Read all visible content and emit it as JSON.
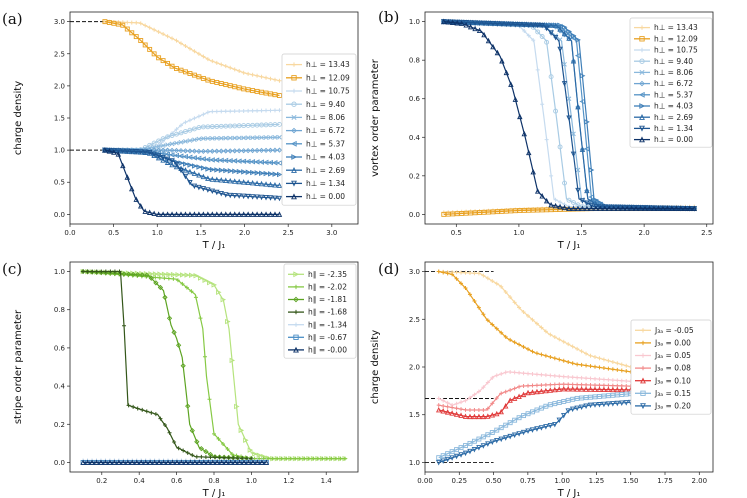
{
  "chart_data": [
    {
      "type": "line",
      "panel_label": "(a)",
      "xlabel": "T / J₁",
      "ylabel": "charge density",
      "xlim": [
        0.0,
        3.3
      ],
      "ylim": [
        -0.15,
        3.15
      ],
      "xticks": [
        "0.0",
        "0.5",
        "1.0",
        "1.5",
        "2.0",
        "2.5",
        "3.0"
      ],
      "yticks": [
        "0.0",
        "0.5",
        "1.0",
        "1.5",
        "2.0",
        "2.5",
        "3.0"
      ],
      "xtick_values": [
        0,
        0.5,
        1,
        1.5,
        2,
        2.5,
        3
      ],
      "ytick_values": [
        0,
        0.5,
        1,
        1.5,
        2,
        2.5,
        3
      ],
      "reference_lines": [
        {
          "y": 3.0,
          "x_from": 0.0,
          "x_to": 0.4
        },
        {
          "y": 1.0,
          "x_from": 0.0,
          "x_to": 0.4
        }
      ],
      "legend_position": "right",
      "series": [
        {
          "name": "h⊥ = 13.43",
          "color": "#f8d8a0",
          "marker": "+",
          "x": [
            0.4,
            0.8,
            1.2,
            1.6,
            2.0,
            2.4
          ],
          "values": [
            3.0,
            2.98,
            2.72,
            2.4,
            2.2,
            2.08
          ]
        },
        {
          "name": "h⊥ = 12.09",
          "color": "#e8a020",
          "marker": "s",
          "x": [
            0.4,
            0.6,
            0.8,
            1.0,
            1.2,
            1.6,
            2.0,
            2.4
          ],
          "values": [
            3.0,
            2.95,
            2.72,
            2.45,
            2.28,
            2.08,
            1.95,
            1.85
          ]
        },
        {
          "name": "h⊥ = 10.75",
          "color": "#c6dbef",
          "marker": "+",
          "x": [
            0.4,
            0.8,
            1.0,
            1.3,
            1.6,
            2.4
          ],
          "values": [
            1.0,
            1.0,
            1.06,
            1.42,
            1.6,
            1.62
          ]
        },
        {
          "name": "h⊥ = 9.40",
          "color": "#a8cbe4",
          "marker": "o",
          "x": [
            0.4,
            0.8,
            1.1,
            1.5,
            2.4
          ],
          "values": [
            1.0,
            1.0,
            1.2,
            1.36,
            1.4
          ]
        },
        {
          "name": "h⊥ = 8.06",
          "color": "#8ab8dc",
          "marker": "x",
          "x": [
            0.4,
            0.8,
            1.1,
            1.5,
            2.4
          ],
          "values": [
            1.0,
            1.0,
            1.08,
            1.18,
            1.2
          ]
        },
        {
          "name": "h⊥ = 6.72",
          "color": "#6fa5d2",
          "marker": "D",
          "x": [
            0.4,
            0.8,
            1.1,
            1.5,
            2.4
          ],
          "values": [
            1.0,
            1.0,
            1.0,
            0.98,
            1.0
          ]
        },
        {
          "name": "h⊥ = 5.37",
          "color": "#5593c6",
          "marker": "<",
          "x": [
            0.4,
            0.9,
            1.2,
            1.6,
            2.4
          ],
          "values": [
            1.0,
            0.98,
            0.92,
            0.85,
            0.8
          ]
        },
        {
          "name": "h⊥ = 4.03",
          "color": "#3f7fb8",
          "marker": ">",
          "x": [
            0.4,
            0.9,
            1.2,
            1.6,
            2.4
          ],
          "values": [
            1.0,
            0.97,
            0.82,
            0.7,
            0.62
          ]
        },
        {
          "name": "h⊥ = 2.69",
          "color": "#2b6aa6",
          "marker": "^",
          "x": [
            0.4,
            0.9,
            1.2,
            1.6,
            2.4
          ],
          "values": [
            1.0,
            0.96,
            0.75,
            0.55,
            0.45
          ]
        },
        {
          "name": "h⊥ = 1.34",
          "color": "#1d5490",
          "marker": "v",
          "x": [
            0.4,
            0.9,
            1.2,
            1.4,
            1.8,
            2.4
          ],
          "values": [
            1.0,
            0.97,
            0.82,
            0.45,
            0.3,
            0.25
          ]
        },
        {
          "name": "h⊥ = 0.00",
          "color": "#0d3268",
          "marker": "^",
          "x": [
            0.4,
            0.55,
            0.65,
            0.75,
            0.85,
            1.0,
            2.4
          ],
          "values": [
            1.0,
            0.95,
            0.6,
            0.25,
            0.05,
            0.0,
            0.0
          ]
        }
      ]
    },
    {
      "type": "line",
      "panel_label": "(b)",
      "xlabel": "T / J₁",
      "ylabel": "vortex order parameter",
      "xlim": [
        0.25,
        2.55
      ],
      "ylim": [
        -0.05,
        1.05
      ],
      "xticks": [
        "0.5",
        "1.0",
        "1.5",
        "2.0",
        "2.5"
      ],
      "yticks": [
        "0.0",
        "0.2",
        "0.4",
        "0.6",
        "0.8",
        "1.0"
      ],
      "xtick_values": [
        0.5,
        1,
        1.5,
        2,
        2.5
      ],
      "ytick_values": [
        0,
        0.2,
        0.4,
        0.6,
        0.8,
        1.0
      ],
      "legend_position": "top-right",
      "series": [
        {
          "name": "h⊥ = 13.43",
          "color": "#f8d8a0",
          "marker": "+",
          "x": [
            0.4,
            1.2,
            2.4
          ],
          "values": [
            0.01,
            0.03,
            0.04
          ]
        },
        {
          "name": "h⊥ = 12.09",
          "color": "#e8a020",
          "marker": "s",
          "x": [
            0.4,
            1.0,
            1.6,
            2.4
          ],
          "values": [
            0.0,
            0.02,
            0.03,
            0.03
          ]
        },
        {
          "name": "h⊥ = 10.75",
          "color": "#c6dbef",
          "marker": "+",
          "x": [
            0.4,
            1.0,
            1.12,
            1.2,
            1.28,
            1.4,
            2.4
          ],
          "values": [
            1.0,
            0.98,
            0.9,
            0.5,
            0.08,
            0.04,
            0.03
          ]
        },
        {
          "name": "h⊥ = 9.40",
          "color": "#a8cbe4",
          "marker": "o",
          "x": [
            0.4,
            1.1,
            1.22,
            1.3,
            1.38,
            1.5,
            2.4
          ],
          "values": [
            1.0,
            0.98,
            0.9,
            0.5,
            0.08,
            0.04,
            0.03
          ]
        },
        {
          "name": "h⊥ = 8.06",
          "color": "#8ab8dc",
          "marker": "x",
          "x": [
            0.4,
            1.2,
            1.34,
            1.42,
            1.5,
            1.6,
            2.4
          ],
          "values": [
            1.0,
            0.98,
            0.9,
            0.5,
            0.08,
            0.04,
            0.03
          ]
        },
        {
          "name": "h⊥ = 6.72",
          "color": "#6fa5d2",
          "marker": "D",
          "x": [
            0.4,
            1.28,
            1.42,
            1.48,
            1.55,
            1.65,
            2.4
          ],
          "values": [
            1.0,
            0.98,
            0.9,
            0.5,
            0.08,
            0.04,
            0.03
          ]
        },
        {
          "name": "h⊥ = 5.37",
          "color": "#5593c6",
          "marker": "<",
          "x": [
            0.4,
            1.32,
            1.46,
            1.52,
            1.58,
            1.68,
            2.4
          ],
          "values": [
            1.0,
            0.98,
            0.9,
            0.5,
            0.08,
            0.04,
            0.03
          ]
        },
        {
          "name": "h⊥ = 4.03",
          "color": "#3f7fb8",
          "marker": ">",
          "x": [
            0.4,
            1.35,
            1.48,
            1.54,
            1.6,
            1.7,
            2.4
          ],
          "values": [
            1.0,
            0.98,
            0.9,
            0.5,
            0.08,
            0.04,
            0.03
          ]
        },
        {
          "name": "h⊥ = 2.69",
          "color": "#2b6aa6",
          "marker": "^",
          "x": [
            0.4,
            1.3,
            1.42,
            1.48,
            1.55,
            1.65,
            2.4
          ],
          "values": [
            1.0,
            0.98,
            0.9,
            0.5,
            0.08,
            0.04,
            0.03
          ]
        },
        {
          "name": "h⊥ = 1.34",
          "color": "#1d5490",
          "marker": "v",
          "x": [
            0.4,
            1.2,
            1.32,
            1.4,
            1.48,
            1.6,
            2.4
          ],
          "values": [
            1.0,
            0.98,
            0.9,
            0.5,
            0.08,
            0.04,
            0.03
          ]
        },
        {
          "name": "h⊥ = 0.00",
          "color": "#0d3268",
          "marker": "^",
          "x": [
            0.4,
            0.55,
            0.7,
            0.85,
            0.95,
            1.05,
            1.15,
            1.25,
            1.4,
            2.4
          ],
          "values": [
            1.0,
            0.99,
            0.95,
            0.82,
            0.65,
            0.4,
            0.12,
            0.05,
            0.03,
            0.03
          ]
        }
      ]
    },
    {
      "type": "line",
      "panel_label": "(c)",
      "xlabel": "T / J₁",
      "ylabel": "stripe order parameter",
      "xlim": [
        0.03,
        1.57
      ],
      "ylim": [
        -0.05,
        1.05
      ],
      "xticks": [
        "0.2",
        "0.4",
        "0.6",
        "0.8",
        "1.0",
        "1.2",
        "1.4"
      ],
      "yticks": [
        "0.0",
        "0.2",
        "0.4",
        "0.6",
        "0.8",
        "1.0"
      ],
      "xtick_values": [
        0.2,
        0.4,
        0.6,
        0.8,
        1.0,
        1.2,
        1.4
      ],
      "ytick_values": [
        0,
        0.2,
        0.4,
        0.6,
        0.8,
        1.0
      ],
      "legend_position": "top-right",
      "series": [
        {
          "name": "h∥ = -2.35",
          "color": "#b5e37d",
          "marker": ">",
          "x": [
            0.1,
            0.7,
            0.8,
            0.85,
            0.88,
            0.9,
            0.93,
            1.0,
            1.1,
            1.5
          ],
          "values": [
            1.0,
            0.98,
            0.93,
            0.85,
            0.7,
            0.5,
            0.2,
            0.05,
            0.02,
            0.02
          ]
        },
        {
          "name": "h∥ = -2.02",
          "color": "#86c944",
          "marker": "+",
          "x": [
            0.1,
            0.6,
            0.7,
            0.74,
            0.76,
            0.8,
            0.9,
            1.0,
            1.5
          ],
          "values": [
            1.0,
            0.96,
            0.88,
            0.7,
            0.45,
            0.15,
            0.04,
            0.02,
            0.02
          ]
        },
        {
          "name": "h∥ = -1.81",
          "color": "#5da422",
          "marker": "D",
          "x": [
            0.1,
            0.45,
            0.53,
            0.57,
            0.6,
            0.63,
            0.65,
            0.67,
            0.72,
            0.8,
            1.0
          ],
          "values": [
            1.0,
            0.98,
            0.9,
            0.72,
            0.65,
            0.55,
            0.38,
            0.2,
            0.08,
            0.03,
            0.02
          ]
        },
        {
          "name": "h∥ = -1.68",
          "color": "#34571a",
          "marker": "+",
          "x": [
            0.1,
            0.3,
            0.32,
            0.34,
            0.4,
            0.5,
            0.52,
            0.55,
            0.6,
            0.7,
            1.0
          ],
          "values": [
            1.0,
            1.0,
            0.7,
            0.3,
            0.28,
            0.25,
            0.22,
            0.18,
            0.08,
            0.03,
            0.02
          ]
        },
        {
          "name": "h∥ = -1.34",
          "color": "#c6dbef",
          "marker": "+",
          "x": [
            0.1,
            1.08
          ],
          "values": [
            0.01,
            0.01
          ]
        },
        {
          "name": "h∥ = -0.67",
          "color": "#4b8ec6",
          "marker": "s",
          "x": [
            0.1,
            1.08
          ],
          "values": [
            0.0,
            0.0
          ]
        },
        {
          "name": "h∥ = -0.00",
          "color": "#0d3268",
          "marker": "^",
          "x": [
            0.1,
            1.08
          ],
          "values": [
            0.0,
            0.0
          ]
        }
      ]
    },
    {
      "type": "line",
      "panel_label": "(d)",
      "xlabel": "T / J₁",
      "ylabel": "charge density",
      "xlim": [
        0.0,
        2.1
      ],
      "ylim": [
        0.9,
        3.1
      ],
      "xticks": [
        "0.00",
        "0.25",
        "0.50",
        "0.75",
        "1.00",
        "1.25",
        "1.50",
        "1.75",
        "2.00"
      ],
      "yticks": [
        "1.0",
        "1.5",
        "2.0",
        "2.5",
        "3.0"
      ],
      "xtick_values": [
        0,
        0.25,
        0.5,
        0.75,
        1.0,
        1.25,
        1.5,
        1.75,
        2.0
      ],
      "ytick_values": [
        1,
        1.5,
        2,
        2.5,
        3
      ],
      "reference_lines": [
        {
          "y": 3.0,
          "x_from": 0.0,
          "x_to": 0.5
        },
        {
          "y": 1.67,
          "x_from": 0.0,
          "x_to": 0.5
        },
        {
          "y": 1.0,
          "x_from": 0.0,
          "x_to": 0.5
        }
      ],
      "legend_position": "center-right",
      "series": [
        {
          "name": "J₃ₐ = -0.05",
          "color": "#f8d8a0",
          "marker": "+",
          "x": [
            0.1,
            0.4,
            0.55,
            0.7,
            0.9,
            1.2,
            1.5
          ],
          "values": [
            3.0,
            2.98,
            2.85,
            2.6,
            2.35,
            2.12,
            2.0
          ]
        },
        {
          "name": "J₃ₐ = 0.00",
          "color": "#e8a020",
          "marker": "+",
          "x": [
            0.1,
            0.2,
            0.3,
            0.45,
            0.6,
            0.8,
            1.1,
            1.5
          ],
          "values": [
            3.0,
            2.97,
            2.82,
            2.5,
            2.3,
            2.15,
            2.03,
            1.95
          ]
        },
        {
          "name": "J₃ₐ = 0.05",
          "color": "#f9c8d0",
          "marker": "+",
          "x": [
            0.1,
            0.2,
            0.3,
            0.4,
            0.5,
            0.6,
            1.0,
            1.5
          ],
          "values": [
            1.67,
            1.6,
            1.65,
            1.75,
            1.9,
            1.95,
            1.9,
            1.85
          ]
        },
        {
          "name": "J₃ₐ = 0.08",
          "color": "#f28a8a",
          "marker": "+",
          "x": [
            0.1,
            0.3,
            0.45,
            0.55,
            0.7,
            1.0,
            1.5
          ],
          "values": [
            1.6,
            1.55,
            1.55,
            1.72,
            1.8,
            1.82,
            1.8
          ]
        },
        {
          "name": "J₃ₐ = 0.10",
          "color": "#e03a3a",
          "marker": "^",
          "x": [
            0.1,
            0.3,
            0.45,
            0.55,
            0.62,
            0.75,
            1.0,
            1.5
          ],
          "values": [
            1.55,
            1.48,
            1.48,
            1.52,
            1.65,
            1.73,
            1.77,
            1.76
          ]
        },
        {
          "name": "J₃ₐ = 0.15",
          "color": "#8ab8dc",
          "marker": "s",
          "x": [
            0.1,
            0.3,
            0.5,
            0.7,
            0.9,
            1.1,
            1.5
          ],
          "values": [
            1.05,
            1.18,
            1.32,
            1.48,
            1.6,
            1.67,
            1.72
          ]
        },
        {
          "name": "J₃ₐ = 0.20",
          "color": "#2b6aa6",
          "marker": "v",
          "x": [
            0.1,
            0.3,
            0.5,
            0.75,
            0.95,
            1.05,
            1.2,
            1.5
          ],
          "values": [
            1.0,
            1.1,
            1.22,
            1.33,
            1.4,
            1.55,
            1.6,
            1.63
          ]
        }
      ]
    }
  ]
}
